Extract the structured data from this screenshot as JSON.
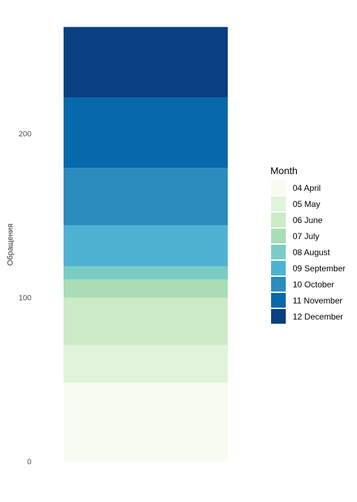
{
  "chart_data": {
    "type": "bar",
    "subtype": "stacked",
    "categories": [
      ""
    ],
    "ylabel": "Обращения",
    "xlabel": "",
    "ylim": [
      0,
      265
    ],
    "yticks": [
      0,
      100,
      200
    ],
    "ytick_labels": [
      "0",
      "100",
      "200"
    ],
    "grid": false,
    "legend": {
      "title": "Month",
      "position": "right"
    },
    "series": [
      {
        "name": "04 April",
        "value": 48,
        "color": "#f7fcf0"
      },
      {
        "name": "05 May",
        "value": 23,
        "color": "#e0f3db"
      },
      {
        "name": "06 June",
        "value": 29,
        "color": "#ccebc5"
      },
      {
        "name": "07 July",
        "value": 11,
        "color": "#a8ddb5"
      },
      {
        "name": "08 August",
        "value": 8,
        "color": "#7bccc4"
      },
      {
        "name": "09 September",
        "value": 25,
        "color": "#4eb3d3"
      },
      {
        "name": "10 October",
        "value": 35,
        "color": "#2b8cbe"
      },
      {
        "name": "11 November",
        "value": 43,
        "color": "#0868ac"
      },
      {
        "name": "12 December",
        "value": 43,
        "color": "#084081"
      }
    ]
  }
}
